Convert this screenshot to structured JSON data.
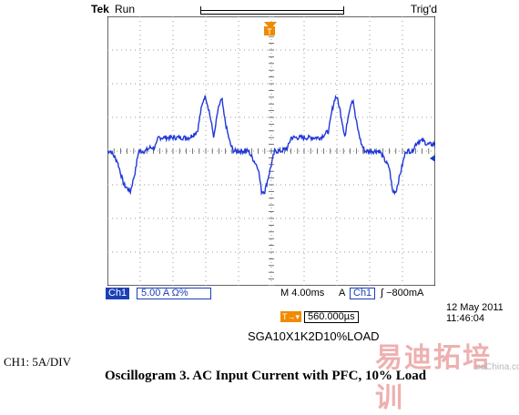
{
  "header": {
    "brand": "Tek",
    "acq_state": "Run",
    "trigger_state": "Trig'd"
  },
  "markers": {
    "trigger_pos": "T",
    "ch1_ground": "1"
  },
  "status_bar": {
    "channel_label": "Ch1",
    "channel_scale": "5.00 A Ω%",
    "timebase": "M 4.00ms",
    "trigger_mode": "A",
    "trigger_channel": "Ch1",
    "trigger_level": "∫ −800mA"
  },
  "timestamp": {
    "date": "12 May 2011",
    "time": "11:46:04"
  },
  "delay": {
    "icon": "T→▾",
    "value": "560.000µs"
  },
  "filename": "SGA10X1K2D10%LOAD",
  "notes": {
    "channel_div": "CH1: 5A/DIV",
    "caption": "Oscillogram 3. AC Input Current with PFC, 10% Load"
  },
  "watermark": {
    "text": "易迪拓培训",
    "url": "eeChina.com"
  },
  "colors": {
    "trace": "#2038d8",
    "channel_accent": "#1b3fb5",
    "trigger_marker": "#f08a00"
  },
  "chart_data": {
    "type": "line",
    "title": "",
    "xlabel": "",
    "ylabel": "",
    "x_divisions": 10,
    "y_divisions": 8,
    "grid": true,
    "xlim": [
      0,
      10
    ],
    "ylim": [
      -4,
      4
    ],
    "series": [
      {
        "x": [
          0,
          0.1,
          0.3,
          0.5,
          0.7,
          0.85,
          0.95,
          1.15,
          1.3,
          1.42,
          1.5,
          1.55,
          1.6,
          1.65,
          2.0,
          2.5,
          2.75,
          2.85,
          2.95,
          3.0,
          3.1,
          3.25,
          3.35,
          3.45,
          3.5,
          3.55,
          3.65,
          3.75,
          3.85,
          4.0,
          4.3,
          4.6,
          4.7,
          4.8,
          4.95,
          5.1,
          5.3,
          5.5,
          5.6,
          5.75,
          5.85,
          6.0,
          6.5,
          6.75,
          6.85,
          6.95,
          7.0,
          7.1,
          7.25,
          7.35,
          7.45,
          7.5,
          7.55,
          7.65,
          7.75,
          7.85,
          8.0,
          8.3,
          8.6,
          8.7,
          8.8,
          8.95,
          9.1,
          9.2,
          9.3,
          9.4,
          9.5,
          9.6,
          9.65,
          9.75,
          10.0
        ],
        "y": [
          0,
          0,
          -0.3,
          -1.0,
          -1.2,
          -0.6,
          0,
          0,
          0.1,
          0.1,
          0.2,
          0.4,
          0.4,
          0.4,
          0.4,
          0.4,
          0.6,
          1.2,
          1.6,
          1.6,
          1.2,
          0.4,
          1.1,
          1.5,
          1.5,
          1.1,
          0.6,
          0.2,
          0,
          0,
          0,
          -0.5,
          -1.2,
          -1.2,
          -0.6,
          0,
          0,
          0.1,
          0.4,
          0.4,
          0.4,
          0.4,
          0.4,
          0.6,
          1.2,
          1.6,
          1.6,
          1.2,
          0.4,
          1.1,
          1.5,
          1.5,
          1.1,
          0.6,
          0.2,
          0,
          0,
          0,
          -0.5,
          -1.2,
          -1.2,
          -0.6,
          0,
          0,
          0,
          0.2,
          0.3,
          0.3,
          0.3,
          0.2,
          0.2
        ]
      }
    ]
  }
}
